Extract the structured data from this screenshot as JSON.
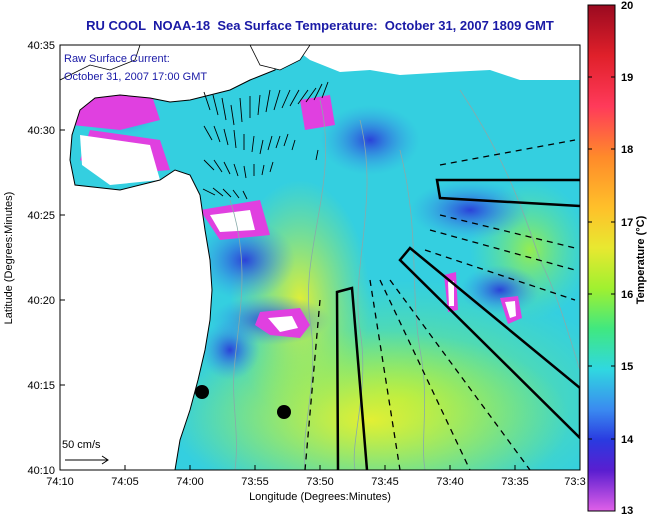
{
  "title": "RU COOL  NOAA-18  Sea Surface Temperature:  October 31, 2007 1809 GMT",
  "current_legend": {
    "line1": "Raw Surface Current:",
    "line2": "October 31, 2007 17:00 GMT",
    "scale_label": "50 cm/s"
  },
  "axes": {
    "xlabel": "Longitude (Degrees:Minutes)",
    "ylabel": "Latitude (Degrees:Minutes)",
    "x_ticks": [
      "74:10",
      "74:05",
      "74:00",
      "73:55",
      "73:50",
      "73:45",
      "73:40",
      "73:35",
      "73:3"
    ],
    "y_ticks": [
      "40:35",
      "40:30",
      "40:25",
      "40:20",
      "40:15",
      "40:10"
    ]
  },
  "colorbar": {
    "label": "Temperature (°C)",
    "ticks": [
      "20",
      "19",
      "18",
      "17",
      "16",
      "15",
      "14",
      "13"
    ],
    "range": [
      13,
      20
    ],
    "colors": [
      "#a0102a",
      "#e0202a",
      "#ff2a8a",
      "#ff7a2a",
      "#ffb02a",
      "#e8e830",
      "#a8f030",
      "#40e880",
      "#30d8e0",
      "#3aa0f0",
      "#3050e0",
      "#3a1ed0",
      "#a02ad0",
      "#e050e0"
    ]
  },
  "colors": {
    "title": "#1a1aa6",
    "land": "#ffffff",
    "outline": "#000000"
  }
}
